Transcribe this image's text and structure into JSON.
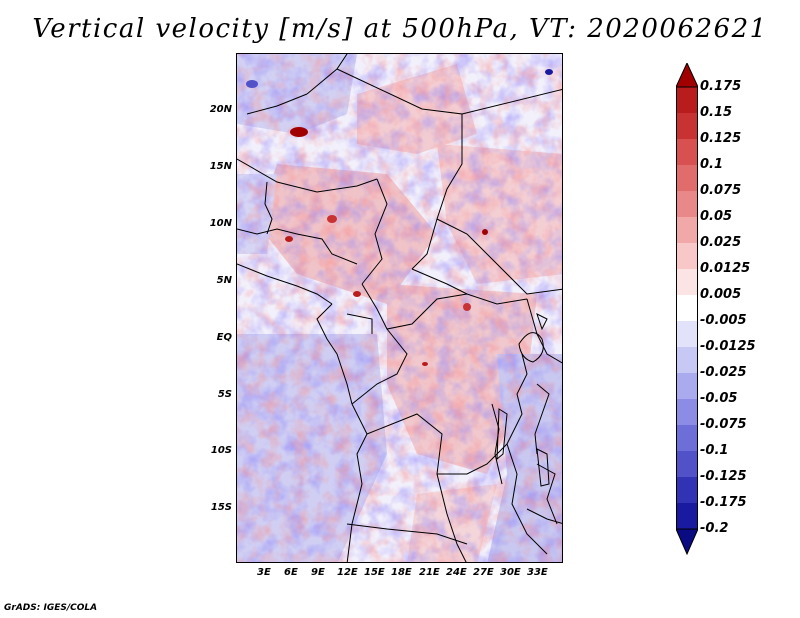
{
  "title": "Vertical velocity [m/s] at 500hPa, VT: 2020062621",
  "credit": "GrADS: IGES/COLA",
  "map": {
    "variable": "Vertical velocity",
    "units": "m/s",
    "level": "500hPa",
    "valid_time": "2020062621",
    "lon_range": [
      0,
      36
    ],
    "lat_range": [
      -20,
      24
    ],
    "lat_labels": [
      "20N",
      "15N",
      "10N",
      "5N",
      "EQ",
      "5S",
      "10S",
      "15S"
    ],
    "lon_labels": [
      "3E",
      "6E",
      "9E",
      "12E",
      "15E",
      "18E",
      "21E",
      "24E",
      "27E",
      "30E",
      "33E"
    ]
  },
  "colorbar": {
    "labels": [
      "0.175",
      "0.15",
      "0.125",
      "0.1",
      "0.075",
      "0.05",
      "0.025",
      "0.0125",
      "0.005",
      "-0.005",
      "-0.0125",
      "-0.025",
      "-0.05",
      "-0.075",
      "-0.1",
      "-0.125",
      "-0.175",
      "-0.2"
    ],
    "colors": [
      "#a00000",
      "#b81c1c",
      "#c83232",
      "#d85050",
      "#e06c6c",
      "#e88888",
      "#f0a8a8",
      "#f8c8c8",
      "#fde4e4",
      "#ffffff",
      "#e2e2fa",
      "#c8c8f4",
      "#aaaaee",
      "#8c8ce6",
      "#6e6ed8",
      "#5252c8",
      "#3232b4",
      "#1a1aa0",
      "#0a0a82"
    ]
  }
}
